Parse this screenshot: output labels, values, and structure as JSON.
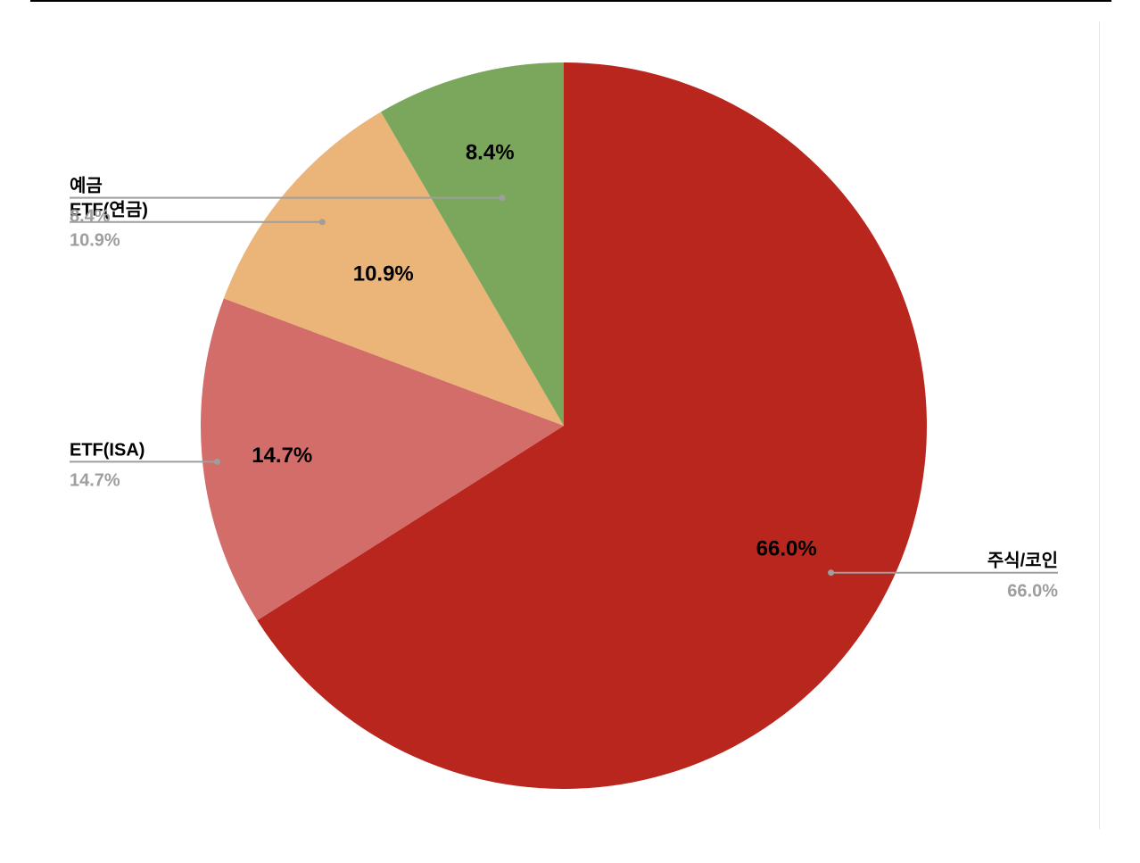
{
  "chart_data": {
    "type": "pie",
    "slices": [
      {
        "label": "주식/코인",
        "value": 66.0,
        "display": "66.0%",
        "color": "#b8261d"
      },
      {
        "label": "ETF(ISA)",
        "value": 14.7,
        "display": "14.7%",
        "color": "#d36d69"
      },
      {
        "label": "ETF(연금)",
        "value": 10.9,
        "display": "10.9%",
        "color": "#ebb478"
      },
      {
        "label": "예금",
        "value": 8.4,
        "display": "8.4%",
        "color": "#7aa75b"
      }
    ],
    "start_angle": "12 o'clock",
    "direction": "clockwise",
    "legend": "callout labels with leader lines"
  }
}
